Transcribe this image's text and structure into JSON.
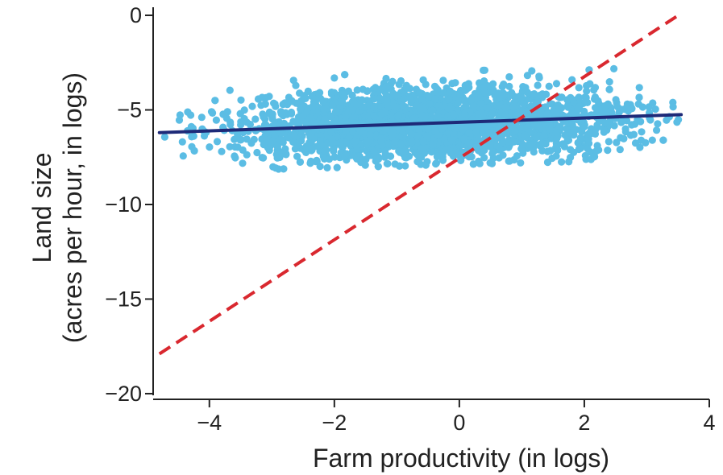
{
  "chart_data": {
    "type": "scatter",
    "xlabel": "Farm productivity (in logs)",
    "ylabel_line1": "Land size",
    "ylabel_line2": "(acres per hour, in logs)",
    "xlim": [
      -4.9,
      4.0
    ],
    "ylim": [
      -20.3,
      0.3
    ],
    "x_ticks": [
      -4,
      -2,
      0,
      2,
      4
    ],
    "x_tick_labels": [
      "−4",
      "−2",
      "0",
      "2",
      "4"
    ],
    "y_ticks": [
      0,
      -5,
      -10,
      -15,
      -20
    ],
    "y_tick_labels": [
      "0",
      "−5",
      "−10",
      "−15",
      "−20"
    ],
    "grid": false,
    "series": [
      {
        "kind": "scatter",
        "color": "#5bbde4",
        "x_range": [
          -4.8,
          3.6
        ],
        "y_center_at_x_min": -6.1,
        "y_center_at_x_max": -5.4,
        "y_spread": 2.3
      },
      {
        "kind": "fit-line",
        "style": "solid",
        "color": "#1e2a78",
        "x": [
          -4.8,
          3.55
        ],
        "y": [
          -6.2,
          -5.25
        ]
      },
      {
        "kind": "reference-line",
        "style": "dashed",
        "color": "#d9282f",
        "x": [
          -4.8,
          3.55
        ],
        "y": [
          -17.9,
          0.1
        ]
      }
    ]
  }
}
